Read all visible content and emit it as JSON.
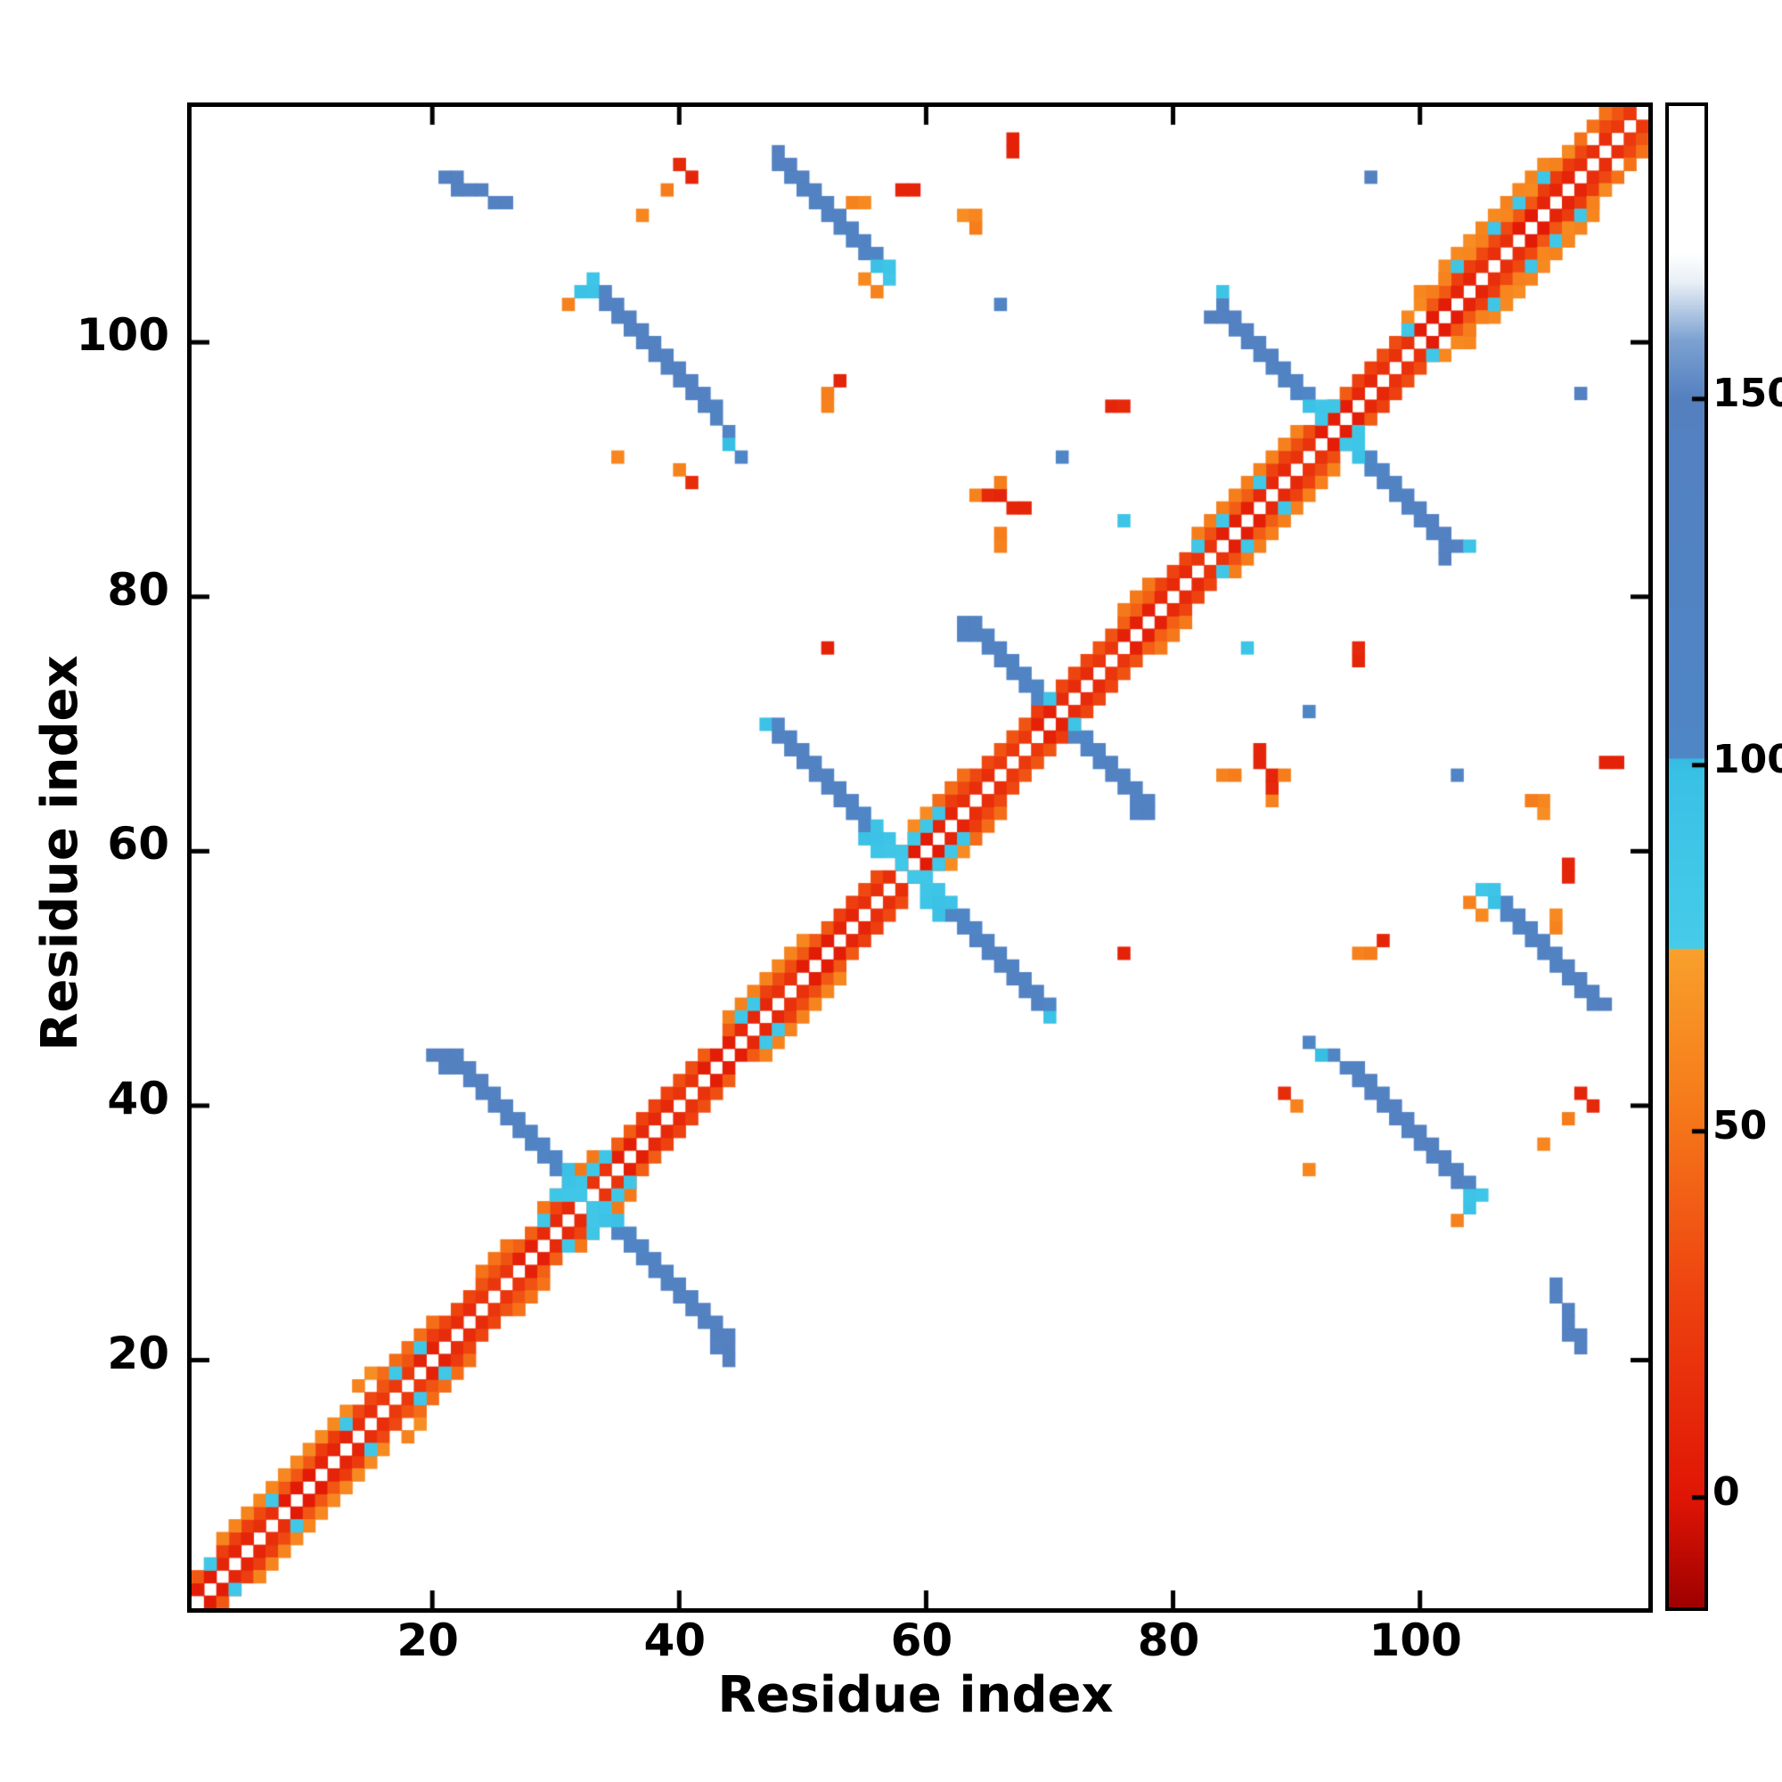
{
  "figure": {
    "background": "#ffffff",
    "frame_color": "#000000"
  },
  "chart_data": {
    "type": "heatmap",
    "title": "",
    "xlabel": "Residue index",
    "ylabel": "Residue index",
    "n_residues": 118,
    "x_range": [
      1,
      118
    ],
    "y_range": [
      1,
      118
    ],
    "x_ticks": [
      20,
      40,
      60,
      80,
      100
    ],
    "y_ticks": [
      20,
      40,
      60,
      80,
      100
    ],
    "grid": false,
    "symmetric": true,
    "legend_position": "colorbar-right",
    "colorbar": {
      "range": [
        -15,
        190
      ],
      "ticks": [
        0,
        50,
        100,
        150
      ],
      "stops": [
        [
          -15,
          "#9e0000"
        ],
        [
          0,
          "#e01505"
        ],
        [
          28,
          "#ee4310"
        ],
        [
          55,
          "#f67d1b"
        ],
        [
          74,
          "#f89e2b"
        ],
        [
          74.9,
          "#f8a22e"
        ],
        [
          75,
          "#46cce9"
        ],
        [
          99,
          "#39c0e5"
        ],
        [
          100.9,
          "#36bce2"
        ],
        [
          101,
          "#4e86c6"
        ],
        [
          150,
          "#5480c0"
        ],
        [
          158,
          "#7ca1d1"
        ],
        [
          166,
          "#e9eff6"
        ],
        [
          170,
          "#ffffff"
        ],
        [
          190,
          "#ffffff"
        ]
      ]
    },
    "diagonal_band": {
      "offset1_value": 12,
      "offset2_value": 32,
      "offset3": {
        "value": 55,
        "segments": [
          [
            3,
            20
          ],
          [
            24,
            33
          ],
          [
            44,
            50
          ],
          [
            59,
            63
          ],
          [
            76,
            90
          ],
          [
            99,
            116
          ]
        ]
      },
      "offset4": {
        "value": 62,
        "segments": [
          [
            8,
            18
          ],
          [
            102,
            114
          ]
        ]
      },
      "jitter": 9
    },
    "features": [
      {
        "name": "cross-hairpin-b",
        "cells": [
          [
            20,
            44,
            150
          ],
          [
            21,
            44,
            148
          ],
          [
            21,
            43,
            145
          ],
          [
            22,
            43,
            146
          ],
          [
            22,
            44,
            138
          ],
          [
            23,
            42,
            144
          ],
          [
            23,
            43,
            139
          ],
          [
            24,
            42,
            141
          ],
          [
            24,
            41,
            139
          ],
          [
            25,
            41,
            137
          ],
          [
            25,
            40,
            139
          ],
          [
            26,
            40,
            134
          ],
          [
            26,
            39,
            136
          ],
          [
            27,
            39,
            129
          ],
          [
            27,
            38,
            131
          ],
          [
            28,
            38,
            126
          ],
          [
            28,
            37,
            124
          ],
          [
            29,
            37,
            118
          ],
          [
            29,
            36,
            116
          ],
          [
            30,
            36,
            110
          ],
          [
            30,
            35,
            106
          ],
          [
            31,
            35,
            98
          ],
          [
            31,
            34,
            94
          ],
          [
            32,
            34,
            90
          ],
          [
            32,
            33,
            87
          ],
          [
            30,
            33,
            88
          ],
          [
            31,
            33,
            86
          ],
          [
            33,
            35,
            86
          ],
          [
            34,
            36,
            88
          ]
        ]
      },
      {
        "name": "cross-hairpin-c",
        "cells": [
          [
            47,
            70,
            96
          ],
          [
            48,
            70,
            102
          ],
          [
            48,
            69,
            132
          ],
          [
            49,
            69,
            128
          ],
          [
            49,
            68,
            136
          ],
          [
            50,
            68,
            130
          ],
          [
            50,
            67,
            138
          ],
          [
            51,
            67,
            124
          ],
          [
            51,
            66,
            136
          ],
          [
            52,
            66,
            128
          ],
          [
            52,
            65,
            134
          ],
          [
            53,
            65,
            124
          ],
          [
            53,
            64,
            130
          ],
          [
            54,
            64,
            116
          ],
          [
            54,
            63,
            120
          ],
          [
            55,
            63,
            102
          ],
          [
            55,
            62,
            106
          ],
          [
            56,
            62,
            94
          ],
          [
            56,
            61,
            96
          ],
          [
            57,
            61,
            92
          ],
          [
            57,
            60,
            88
          ],
          [
            58,
            60,
            86
          ],
          [
            58,
            59,
            84
          ],
          [
            55,
            61,
            98
          ],
          [
            56,
            60,
            92
          ],
          [
            59,
            61,
            85
          ],
          [
            60,
            62,
            86
          ],
          [
            61,
            63,
            88
          ]
        ]
      },
      {
        "name": "cross-hairpin-d",
        "cells": [
          [
            63,
            78,
            140
          ],
          [
            63,
            77,
            136
          ],
          [
            64,
            77,
            137
          ],
          [
            64,
            78,
            130
          ],
          [
            65,
            76,
            134
          ],
          [
            65,
            77,
            129
          ],
          [
            66,
            75,
            131
          ],
          [
            66,
            76,
            127
          ],
          [
            67,
            74,
            127
          ],
          [
            67,
            75,
            124
          ],
          [
            68,
            73,
            119
          ],
          [
            68,
            74,
            117
          ],
          [
            69,
            72,
            108
          ],
          [
            69,
            73,
            104
          ],
          [
            70,
            72,
            92
          ]
        ]
      },
      {
        "name": "cross-hairpin-e",
        "cells": [
          [
            83,
            102,
            147
          ],
          [
            84,
            103,
            144
          ],
          [
            84,
            104,
            92
          ],
          [
            84,
            102,
            139
          ],
          [
            85,
            102,
            141
          ],
          [
            85,
            101,
            137
          ],
          [
            86,
            101,
            139
          ],
          [
            86,
            100,
            134
          ],
          [
            87,
            100,
            137
          ],
          [
            87,
            99,
            131
          ],
          [
            88,
            99,
            134
          ],
          [
            88,
            98,
            129
          ],
          [
            89,
            98,
            129
          ],
          [
            89,
            97,
            124
          ],
          [
            90,
            97,
            118
          ],
          [
            90,
            96,
            112
          ],
          [
            91,
            96,
            102
          ],
          [
            91,
            95,
            96
          ],
          [
            92,
            95,
            90
          ],
          [
            92,
            94,
            87
          ],
          [
            93,
            95,
            88
          ]
        ]
      },
      {
        "name": "sheet-streak-f",
        "cells": [
          [
            32,
            104,
            96
          ],
          [
            33,
            104,
            93
          ],
          [
            33,
            105,
            90
          ],
          [
            34,
            103,
            138
          ],
          [
            34,
            104,
            118
          ],
          [
            35,
            102,
            141
          ],
          [
            35,
            103,
            136
          ],
          [
            36,
            101,
            144
          ],
          [
            36,
            102,
            139
          ],
          [
            37,
            100,
            144
          ],
          [
            37,
            101,
            141
          ],
          [
            38,
            99,
            144
          ],
          [
            38,
            100,
            139
          ],
          [
            39,
            98,
            143
          ],
          [
            39,
            99,
            141
          ],
          [
            40,
            97,
            141
          ],
          [
            40,
            98,
            139
          ],
          [
            41,
            96,
            139
          ],
          [
            41,
            97,
            137
          ],
          [
            42,
            95,
            137
          ],
          [
            42,
            96,
            134
          ],
          [
            43,
            94,
            129
          ],
          [
            43,
            95,
            127
          ],
          [
            44,
            93,
            114
          ],
          [
            44,
            92,
            100
          ],
          [
            45,
            91,
            104
          ],
          [
            31,
            103,
            58
          ]
        ]
      },
      {
        "name": "sheet-streak-g",
        "cells": [
          [
            48,
            115,
            139
          ],
          [
            48,
            114,
            141
          ],
          [
            49,
            114,
            139
          ],
          [
            49,
            113,
            137
          ],
          [
            50,
            113,
            139
          ],
          [
            50,
            112,
            137
          ],
          [
            51,
            112,
            137
          ],
          [
            51,
            111,
            134
          ],
          [
            52,
            111,
            134
          ],
          [
            52,
            110,
            131
          ],
          [
            53,
            110,
            131
          ],
          [
            53,
            109,
            129
          ],
          [
            54,
            109,
            127
          ],
          [
            54,
            108,
            125
          ],
          [
            55,
            108,
            123
          ],
          [
            55,
            107,
            119
          ],
          [
            56,
            107,
            108
          ],
          [
            56,
            106,
            98
          ],
          [
            57,
            106,
            91
          ],
          [
            57,
            105,
            87
          ],
          [
            55,
            105,
            62
          ],
          [
            56,
            104,
            58
          ]
        ]
      },
      {
        "name": "streak-top-left",
        "cells": [
          [
            21,
            113,
            144
          ],
          [
            22,
            113,
            141
          ],
          [
            22,
            112,
            139
          ],
          [
            23,
            112,
            141
          ],
          [
            24,
            112,
            139
          ],
          [
            25,
            111,
            141
          ],
          [
            26,
            111,
            139
          ]
        ]
      },
      {
        "name": "top-right-band-extra",
        "cells": [
          [
            100,
            104,
            60
          ],
          [
            101,
            104,
            55
          ],
          [
            102,
            105,
            58
          ],
          [
            103,
            106,
            88
          ],
          [
            103,
            107,
            62
          ],
          [
            104,
            107,
            60
          ],
          [
            104,
            108,
            64
          ],
          [
            105,
            108,
            57
          ],
          [
            105,
            109,
            59
          ],
          [
            106,
            109,
            90
          ],
          [
            106,
            110,
            62
          ],
          [
            107,
            110,
            60
          ],
          [
            107,
            111,
            58
          ],
          [
            108,
            111,
            86
          ],
          [
            108,
            112,
            60
          ],
          [
            109,
            112,
            62
          ],
          [
            110,
            113,
            88
          ],
          [
            110,
            114,
            60
          ],
          [
            111,
            114,
            58
          ],
          [
            112,
            115,
            62
          ]
        ]
      },
      {
        "name": "isolated-dots",
        "cells": [
          [
            40,
            114,
            12
          ],
          [
            41,
            113,
            10
          ],
          [
            39,
            112,
            55
          ],
          [
            37,
            110,
            60
          ],
          [
            54,
            111,
            58
          ],
          [
            55,
            111,
            62
          ],
          [
            58,
            112,
            10
          ],
          [
            59,
            112,
            10
          ],
          [
            63,
            110,
            64
          ],
          [
            64,
            110,
            60
          ],
          [
            64,
            109,
            55
          ],
          [
            67,
            115,
            8
          ],
          [
            67,
            116,
            8
          ],
          [
            96,
            113,
            140
          ],
          [
            66,
            103,
            120
          ],
          [
            52,
            95,
            58
          ],
          [
            52,
            96,
            55
          ],
          [
            53,
            97,
            10
          ],
          [
            75,
            95,
            10
          ],
          [
            76,
            95,
            12
          ],
          [
            64,
            88,
            58
          ],
          [
            65,
            88,
            12
          ],
          [
            66,
            88,
            10
          ],
          [
            66,
            89,
            55
          ],
          [
            52,
            76,
            8
          ],
          [
            40,
            90,
            58
          ],
          [
            41,
            89,
            14
          ],
          [
            35,
            91,
            60
          ],
          [
            66,
            84,
            58
          ],
          [
            66,
            85,
            55
          ],
          [
            67,
            87,
            10
          ],
          [
            68,
            87,
            10
          ],
          [
            76,
            86,
            92
          ],
          [
            71,
            91,
            105
          ],
          [
            2,
            4,
            86
          ]
        ]
      },
      {
        "name": "band-speckles",
        "value": 86,
        "cells": [
          [
            7,
            9
          ],
          [
            13,
            15
          ],
          [
            17,
            19
          ],
          [
            19,
            21
          ],
          [
            29,
            31
          ],
          [
            45,
            47
          ],
          [
            46,
            48
          ],
          [
            82,
            84
          ],
          [
            84,
            86
          ],
          [
            87,
            89
          ],
          [
            99,
            101
          ]
        ]
      }
    ]
  }
}
